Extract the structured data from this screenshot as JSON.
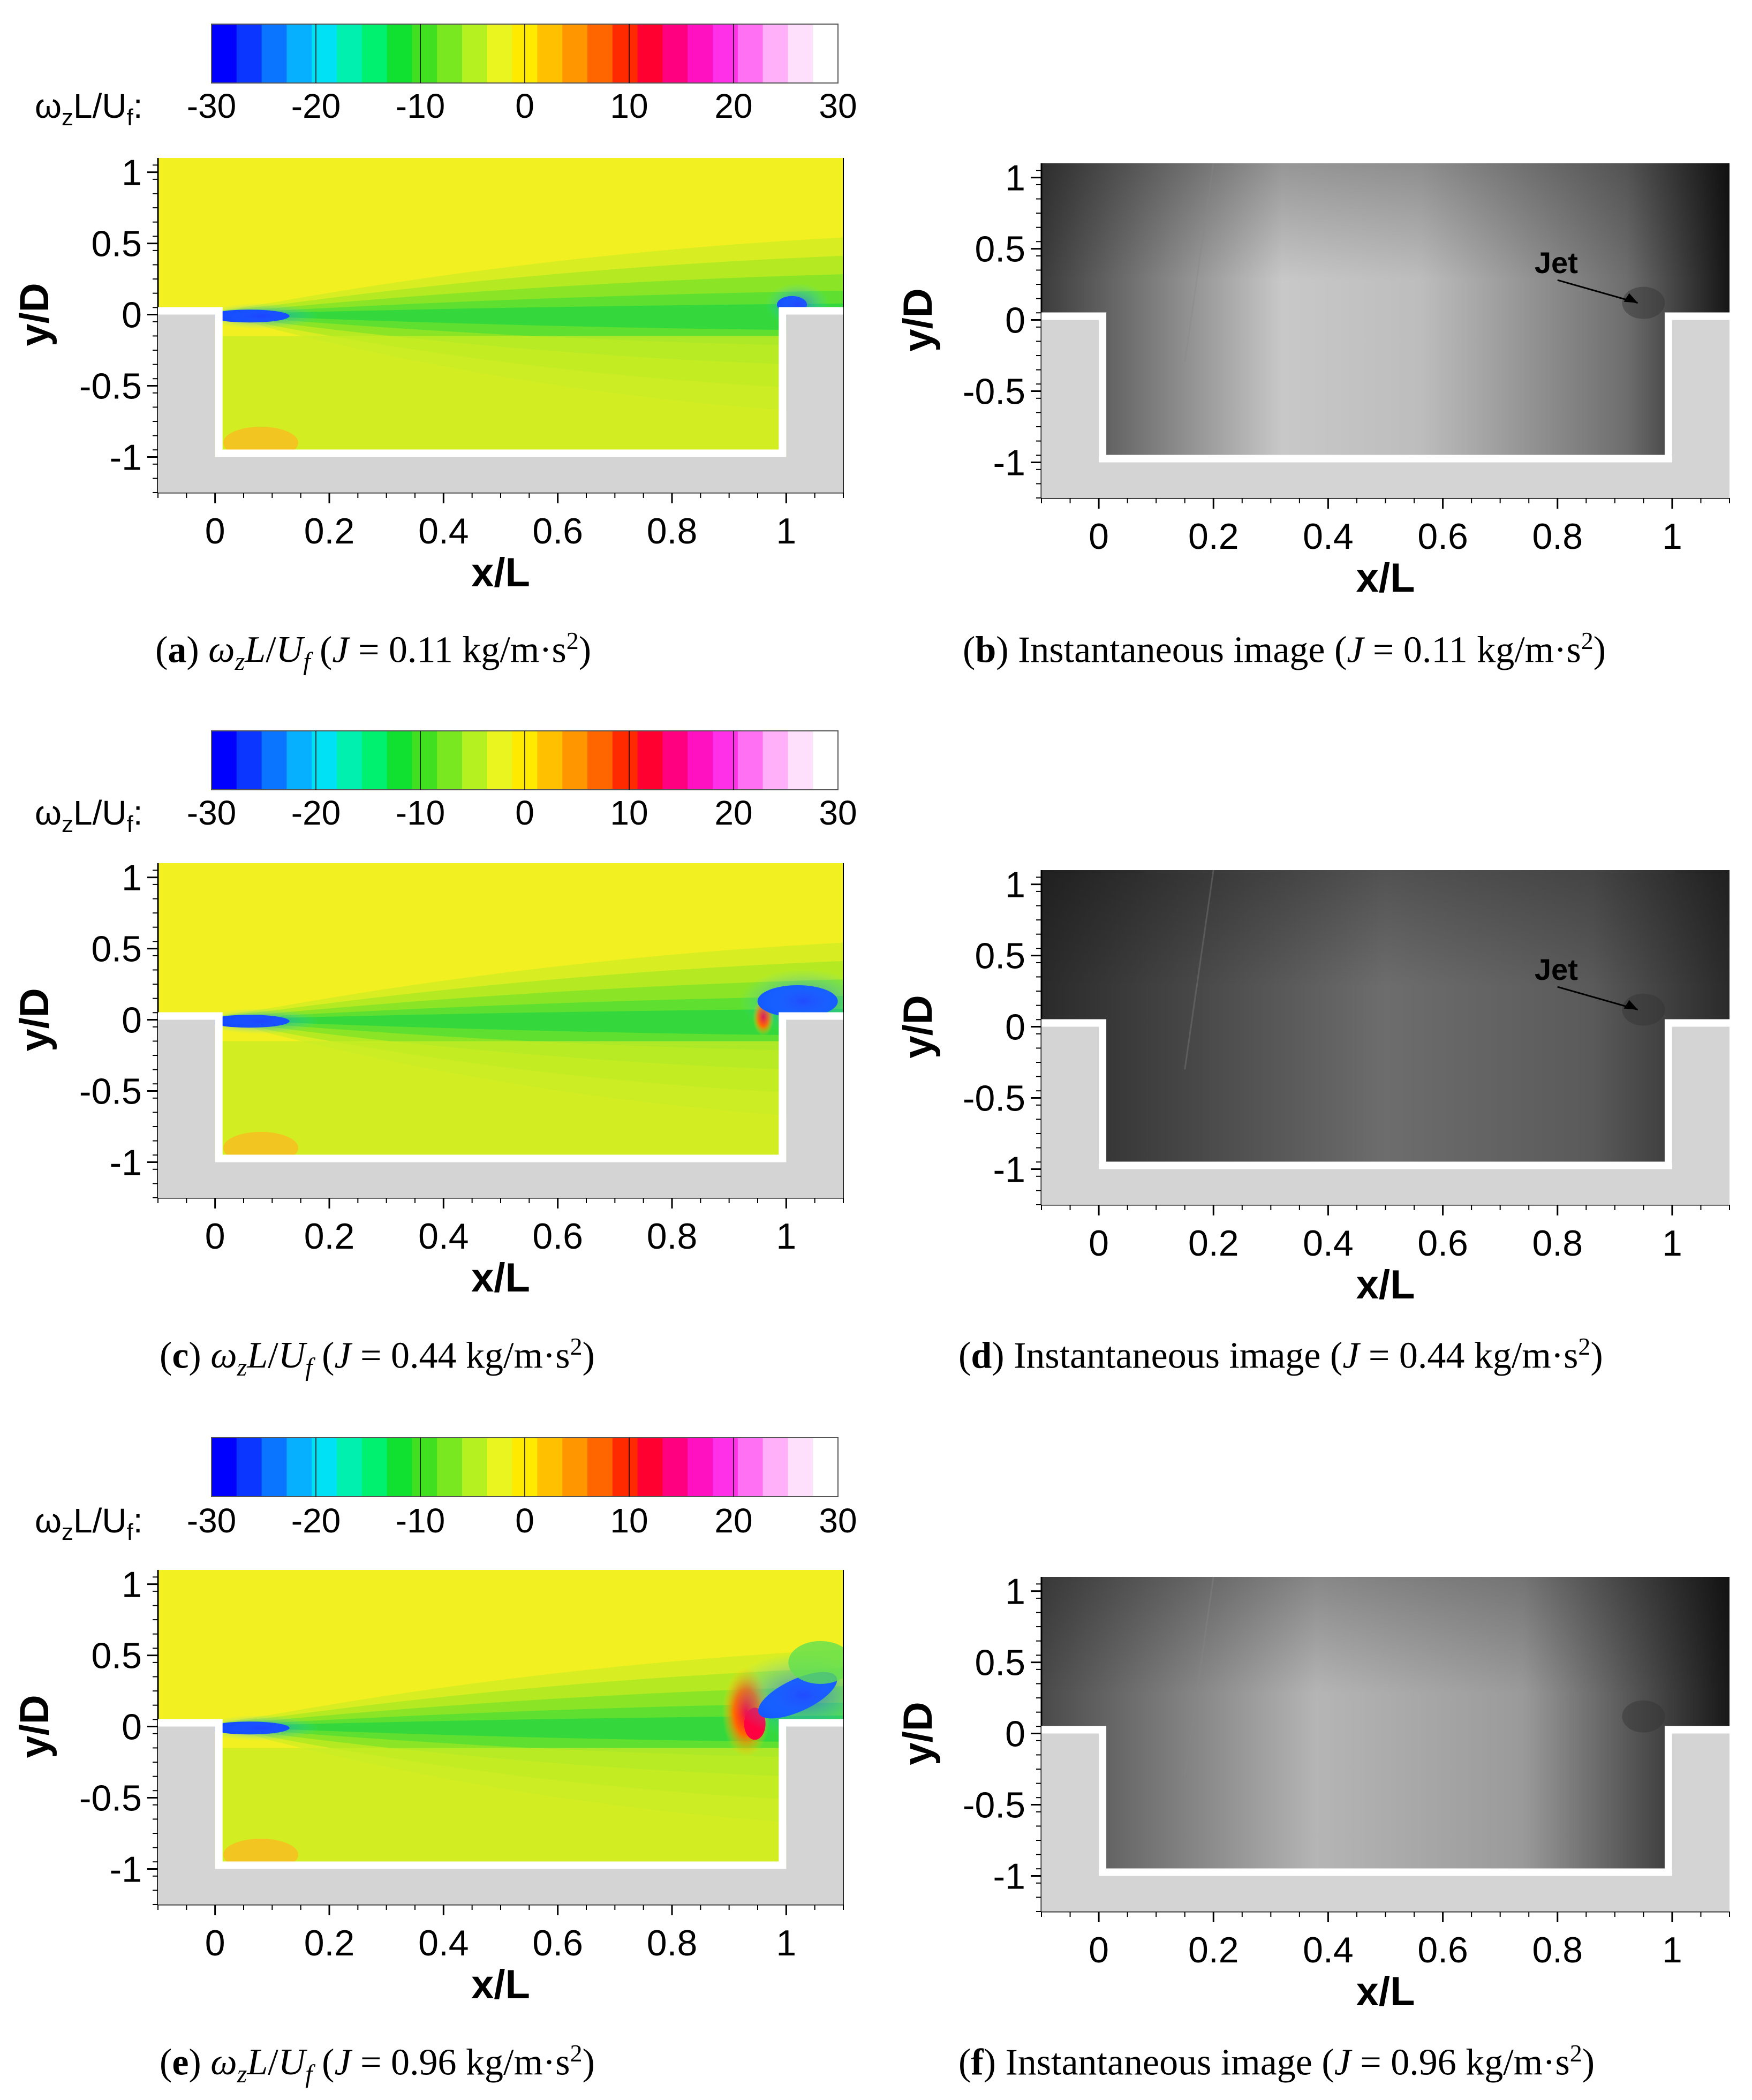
{
  "colorbar": {
    "label": "ωzL/Uf:",
    "ticks": [
      "-30",
      "-20",
      "-10",
      "0",
      "10",
      "20",
      "30"
    ],
    "colors": [
      "#0000ff",
      "#0a36ff",
      "#0a75ff",
      "#07b0ff",
      "#00e1f5",
      "#00f0b0",
      "#00f070",
      "#10e030",
      "#40e020",
      "#7ae820",
      "#b5f020",
      "#eaf520",
      "#ffea00",
      "#ffc000",
      "#ff9600",
      "#ff6600",
      "#ff2a00",
      "#ff0030",
      "#ff0080",
      "#ff10c0",
      "#ff30e8",
      "#ff70f2",
      "#ffb0f8",
      "#ffe0fc",
      "#ffffff"
    ]
  },
  "axes": {
    "xticks": [
      "0",
      "0.2",
      "0.4",
      "0.6",
      "0.8",
      "1"
    ],
    "yticks": [
      "1",
      "0.5",
      "0",
      "-0.5",
      "-1"
    ],
    "xlabel": "x/L",
    "ylabel": "y/D",
    "xlim": [
      -0.1,
      1.1
    ],
    "ylim": [
      -1.25,
      1.1
    ]
  },
  "panels": [
    {
      "id": "a",
      "kind": "contour",
      "letter": "a",
      "caption_label": "ωzL/Uf",
      "J": "0.11",
      "unit": "kg/m·s2"
    },
    {
      "id": "b",
      "kind": "image",
      "letter": "b",
      "caption_label": "Instantaneous image",
      "J": "0.11",
      "unit": "kg/m·s2",
      "annotation": "Jet"
    },
    {
      "id": "c",
      "kind": "contour",
      "letter": "c",
      "caption_label": "ωzL/Uf",
      "J": "0.44",
      "unit": "kg/m·s2"
    },
    {
      "id": "d",
      "kind": "image",
      "letter": "d",
      "caption_label": "Instantaneous image",
      "J": "0.44",
      "unit": "kg/m·s2",
      "annotation": "Jet"
    },
    {
      "id": "e",
      "kind": "contour",
      "letter": "e",
      "caption_label": "ωzL/Uf",
      "J": "0.96",
      "unit": "kg/m·s2"
    },
    {
      "id": "f",
      "kind": "image",
      "letter": "f",
      "caption_label": "Instantaneous image",
      "J": "0.96",
      "unit": "kg/m·s2"
    }
  ],
  "chart_data": [
    {
      "type": "heatmap",
      "panel": "a",
      "quantity": "ωzL/Uf",
      "J": 0.11,
      "range": [
        -30,
        30
      ],
      "xlim": [
        -0.1,
        1.1
      ],
      "ylim": [
        -1.25,
        1.1
      ]
    },
    {
      "type": "heatmap",
      "panel": "c",
      "quantity": "ωzL/Uf",
      "J": 0.44,
      "range": [
        -30,
        30
      ],
      "xlim": [
        -0.1,
        1.1
      ],
      "ylim": [
        -1.25,
        1.1
      ]
    },
    {
      "type": "heatmap",
      "panel": "e",
      "quantity": "ωzL/Uf",
      "J": 0.96,
      "range": [
        -30,
        30
      ],
      "xlim": [
        -0.1,
        1.1
      ],
      "ylim": [
        -1.25,
        1.1
      ]
    }
  ]
}
